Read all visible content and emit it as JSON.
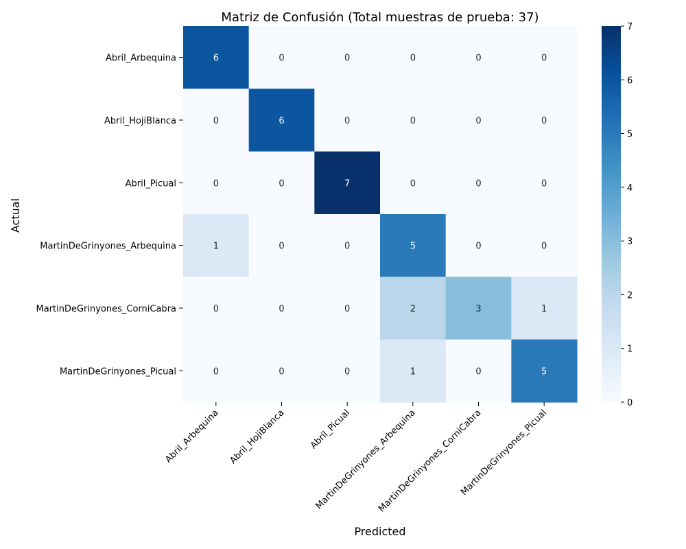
{
  "chart_data": {
    "type": "heatmap",
    "title": "Matriz de Confusión (Total muestras de prueba: 37)",
    "xlabel": "Predicted",
    "ylabel": "Actual",
    "row_labels": [
      "Abril_Arbequina",
      "Abril_HojiBlanca",
      "Abril_Picual",
      "MartinDeGrinyones_Arbequina",
      "MartinDeGrinyones_CorniCabra",
      "MartinDeGrinyones_Picual"
    ],
    "col_labels": [
      "Abril_Arbequina",
      "Abril_HojiBlanca",
      "Abril_Picual",
      "MartinDeGrinyones_Arbequina",
      "MartinDeGrinyones_CorniCabra",
      "MartinDeGrinyones_Picual"
    ],
    "values": [
      [
        6,
        0,
        0,
        0,
        0,
        0
      ],
      [
        0,
        6,
        0,
        0,
        0,
        0
      ],
      [
        0,
        0,
        7,
        0,
        0,
        0
      ],
      [
        1,
        0,
        0,
        5,
        0,
        0
      ],
      [
        0,
        0,
        0,
        2,
        3,
        1
      ],
      [
        0,
        0,
        0,
        1,
        0,
        5
      ]
    ],
    "colorbar": {
      "range": [
        0,
        7
      ],
      "ticks": [
        "0",
        "1",
        "2",
        "3",
        "4",
        "5",
        "6",
        "7"
      ],
      "colormap": "Blues"
    },
    "grid": false
  },
  "colors": {
    "scale": [
      "#f7fbff",
      "#deebf7",
      "#c6dbef",
      "#9ecae1",
      "#6baed6",
      "#4292c6",
      "#2171b5",
      "#08519c",
      "#08306b"
    ],
    "dark_text": "#262626",
    "light_text": "#ffffff"
  }
}
